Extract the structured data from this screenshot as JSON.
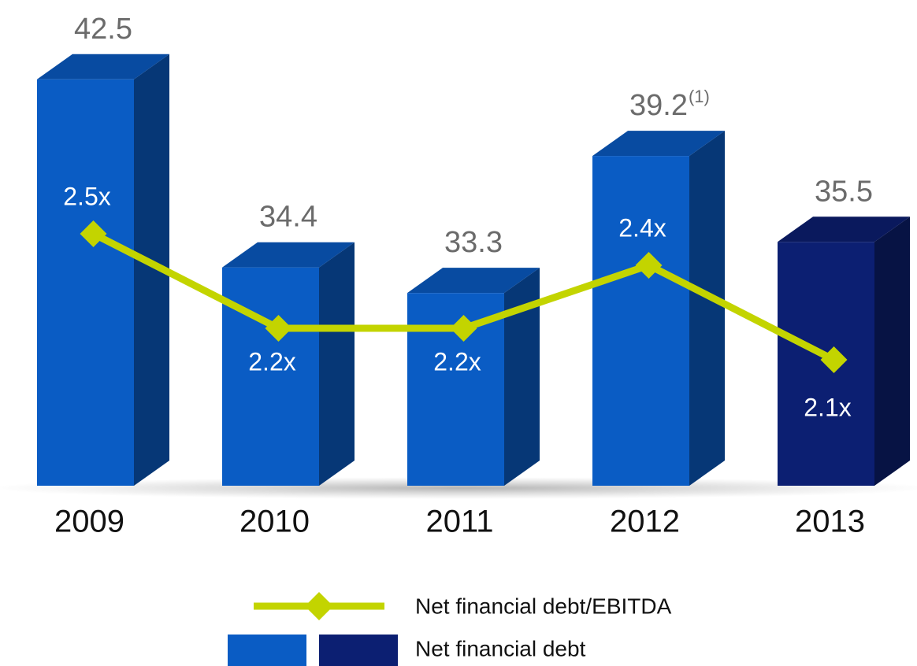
{
  "chart_data": {
    "type": "combo",
    "categories": [
      "2009",
      "2010",
      "2011",
      "2012",
      "2013"
    ],
    "series": [
      {
        "name": "Net financial debt",
        "type": "bar",
        "colors": [
          "#0a5cc4",
          "#0a5cc4",
          "#0a5cc4",
          "#0a5cc4",
          "#0c1f72"
        ],
        "values": [
          42.5,
          34.4,
          33.3,
          39.2,
          35.5
        ]
      },
      {
        "name": "Net financial debt/EBITDA",
        "type": "line",
        "axis": "y2",
        "color": "#c3d400",
        "values": [
          2.5,
          2.2,
          2.2,
          2.4,
          2.1
        ],
        "value_labels": [
          "2.5x",
          "2.2x",
          "2.2x",
          "2.4x",
          "2.1x"
        ]
      }
    ],
    "ylim": [
      25,
      45
    ],
    "y2lim": [
      1.7,
      3.175
    ],
    "annotations": [
      {
        "text": "(1)",
        "series": 0,
        "index": 3
      }
    ]
  }
}
